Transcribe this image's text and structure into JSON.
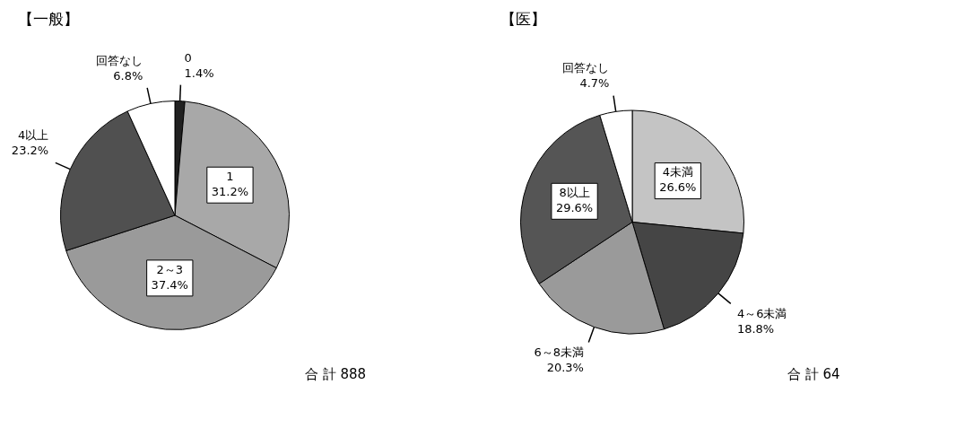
{
  "chart_data": [
    {
      "type": "pie",
      "title": "【一般】",
      "categories": [
        "0",
        "1",
        "2～3",
        "4以上",
        "回答なし"
      ],
      "values": [
        1.4,
        31.2,
        37.4,
        23.2,
        6.8
      ],
      "value_labels": [
        "1.4%",
        "31.2%",
        "37.4%",
        "23.2%",
        "6.8%"
      ],
      "colors": [
        "#202020",
        "#a8a8a8",
        "#9a9a9a",
        "#505050",
        "#ffffff"
      ],
      "legend": false,
      "annotations": [
        "合 計 888"
      ]
    },
    {
      "type": "pie",
      "title": "【医】",
      "categories": [
        "4未満",
        "4～6未満",
        "6～8未満",
        "8以上",
        "回答なし"
      ],
      "values": [
        26.6,
        18.8,
        20.3,
        29.6,
        4.7
      ],
      "value_labels": [
        "26.6%",
        "18.8%",
        "20.3%",
        "29.6%",
        "4.7%"
      ],
      "colors": [
        "#c4c4c4",
        "#454545",
        "#9a9a9a",
        "#555555",
        "#ffffff"
      ],
      "legend": false,
      "annotations": [
        "合 計 64"
      ]
    }
  ]
}
